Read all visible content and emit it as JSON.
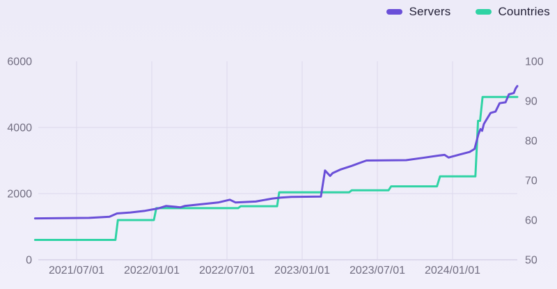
{
  "chart_data": {
    "type": "line",
    "title": "",
    "legend_position": "top-right",
    "grid": true,
    "background_color": "#edebf8",
    "gridline_color": "#dcd8ec",
    "axis_line_color": "#c9c4de",
    "tick_label_color": "#716d80",
    "x_axis": {
      "ticks": [
        "2021/07/01",
        "2022/01/01",
        "2022/07/01",
        "2023/01/01",
        "2023/07/01",
        "2024/01/01"
      ],
      "range": [
        "2021/03/22",
        "2024/06/06"
      ]
    },
    "left_axis": {
      "ticks": [
        0,
        2000,
        4000,
        6000
      ],
      "gridline_ticks": [
        0,
        2000,
        4000
      ],
      "range": [
        0,
        6000
      ]
    },
    "right_axis": {
      "ticks": [
        50,
        60,
        70,
        80,
        90,
        100
      ],
      "range": [
        50,
        100
      ]
    },
    "series": [
      {
        "name": "Servers",
        "color": "#6a4fd8",
        "axis": "left",
        "points": [
          [
            "2021/03/22",
            1250
          ],
          [
            "2021/08/01",
            1265
          ],
          [
            "2021/09/05",
            1290
          ],
          [
            "2021/09/20",
            1300
          ],
          [
            "2021/10/08",
            1400
          ],
          [
            "2021/11/10",
            1430
          ],
          [
            "2021/12/15",
            1480
          ],
          [
            "2022/01/18",
            1555
          ],
          [
            "2022/02/05",
            1625
          ],
          [
            "2022/03/10",
            1585
          ],
          [
            "2022/03/20",
            1625
          ],
          [
            "2022/06/10",
            1730
          ],
          [
            "2022/07/08",
            1815
          ],
          [
            "2022/07/22",
            1730
          ],
          [
            "2022/09/10",
            1760
          ],
          [
            "2022/10/20",
            1850
          ],
          [
            "2022/11/10",
            1880
          ],
          [
            "2022/12/05",
            1900
          ],
          [
            "2023/02/16",
            1910
          ],
          [
            "2023/02/26",
            2700
          ],
          [
            "2023/03/08",
            2535
          ],
          [
            "2023/03/14",
            2620
          ],
          [
            "2023/04/02",
            2725
          ],
          [
            "2023/04/28",
            2830
          ],
          [
            "2023/05/24",
            2950
          ],
          [
            "2023/06/05",
            3000
          ],
          [
            "2023/09/10",
            3010
          ],
          [
            "2023/10/20",
            3080
          ],
          [
            "2023/11/28",
            3150
          ],
          [
            "2023/12/12",
            3170
          ],
          [
            "2023/12/22",
            3090
          ],
          [
            "2024/01/18",
            3180
          ],
          [
            "2024/02/12",
            3260
          ],
          [
            "2024/02/24",
            3350
          ],
          [
            "2024/03/03",
            3800
          ],
          [
            "2024/03/08",
            3950
          ],
          [
            "2024/03/12",
            3900
          ],
          [
            "2024/03/16",
            4100
          ],
          [
            "2024/03/22",
            4225
          ],
          [
            "2024/04/02",
            4437
          ],
          [
            "2024/04/14",
            4480
          ],
          [
            "2024/04/24",
            4732
          ],
          [
            "2024/05/08",
            4760
          ],
          [
            "2024/05/16",
            5000
          ],
          [
            "2024/05/28",
            5040
          ],
          [
            "2024/06/02",
            5180
          ],
          [
            "2024/06/06",
            5250
          ]
        ]
      },
      {
        "name": "Countries",
        "color": "#2fd3a4",
        "axis": "right",
        "points": [
          [
            "2021/03/22",
            55
          ],
          [
            "2021/10/04",
            55
          ],
          [
            "2021/10/10",
            60
          ],
          [
            "2022/01/06",
            60
          ],
          [
            "2022/01/12",
            63
          ],
          [
            "2022/07/28",
            63
          ],
          [
            "2022/08/04",
            63.5
          ],
          [
            "2022/11/01",
            63.5
          ],
          [
            "2022/11/06",
            67
          ],
          [
            "2023/04/24",
            67
          ],
          [
            "2023/04/30",
            67.5
          ],
          [
            "2023/07/28",
            67.5
          ],
          [
            "2023/08/04",
            68.5
          ],
          [
            "2023/11/24",
            68.5
          ],
          [
            "2023/12/01",
            71
          ],
          [
            "2024/02/26",
            71
          ],
          [
            "2024/03/02",
            85
          ],
          [
            "2024/03/07",
            85
          ],
          [
            "2024/03/13",
            91
          ],
          [
            "2024/06/06",
            91
          ]
        ]
      }
    ]
  }
}
